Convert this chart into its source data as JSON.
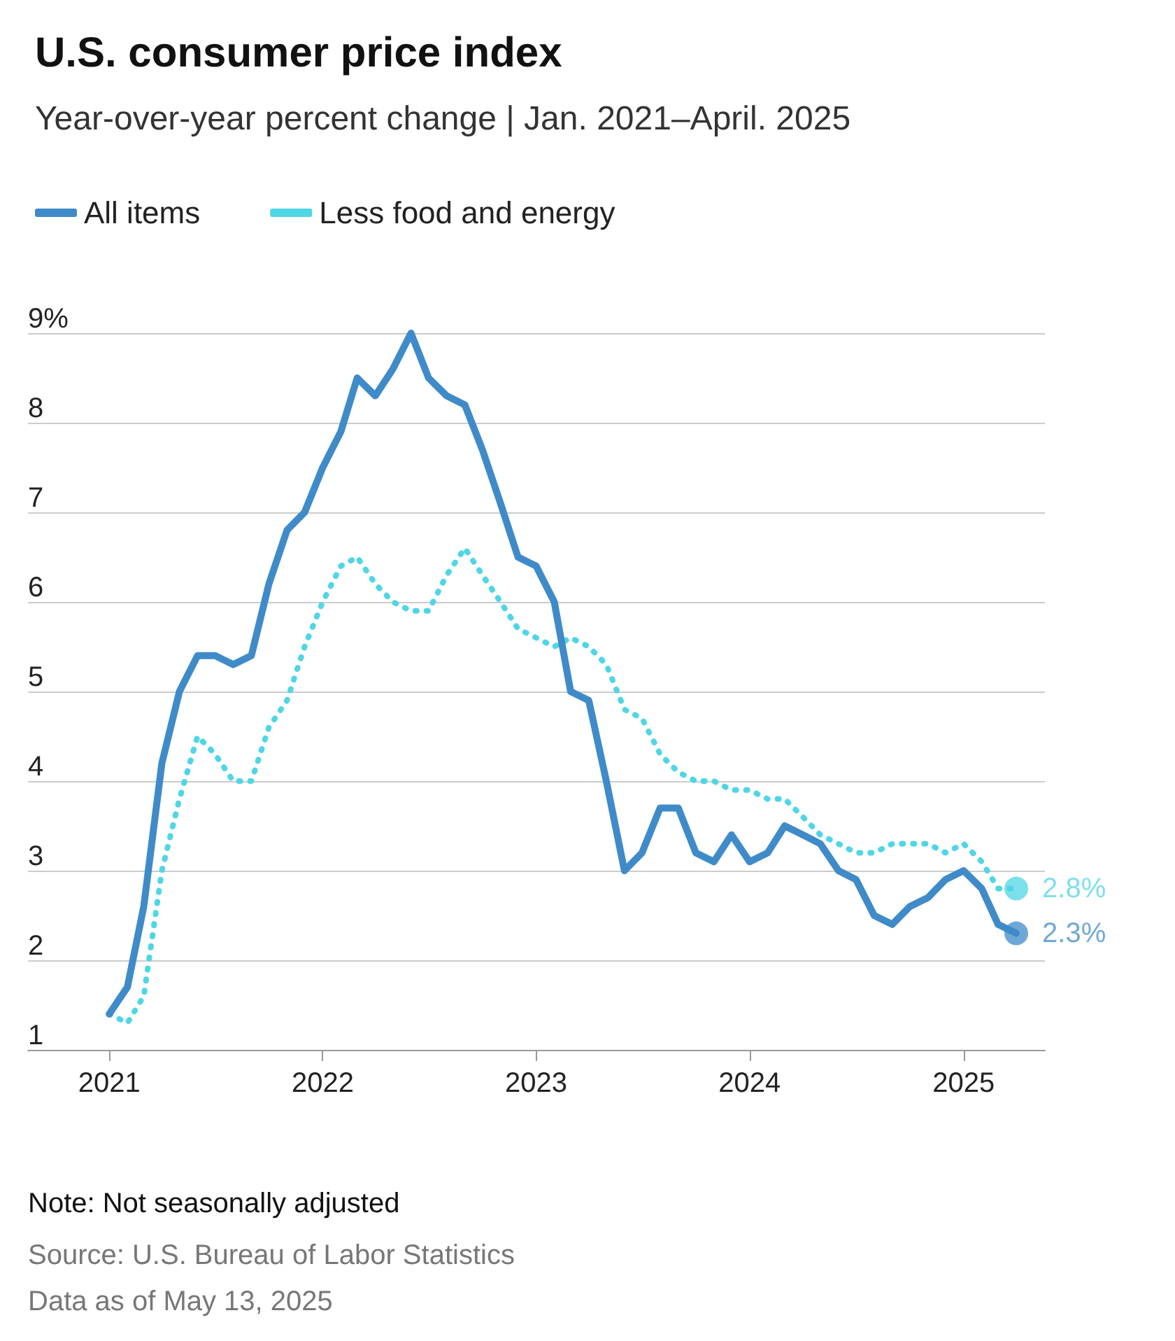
{
  "chart_data": {
    "type": "line",
    "title": "U.S. consumer price index",
    "subtitle": "Year-over-year percent change | Jan. 2021–April. 2025",
    "x": [
      "2021-01",
      "2021-02",
      "2021-03",
      "2021-04",
      "2021-05",
      "2021-06",
      "2021-07",
      "2021-08",
      "2021-09",
      "2021-10",
      "2021-11",
      "2021-12",
      "2022-01",
      "2022-02",
      "2022-03",
      "2022-04",
      "2022-05",
      "2022-06",
      "2022-07",
      "2022-08",
      "2022-09",
      "2022-10",
      "2022-11",
      "2022-12",
      "2023-01",
      "2023-02",
      "2023-03",
      "2023-04",
      "2023-05",
      "2023-06",
      "2023-07",
      "2023-08",
      "2023-09",
      "2023-10",
      "2023-11",
      "2023-12",
      "2024-01",
      "2024-02",
      "2024-03",
      "2024-04",
      "2024-05",
      "2024-06",
      "2024-07",
      "2024-08",
      "2024-09",
      "2024-10",
      "2024-11",
      "2024-12",
      "2025-01",
      "2025-02",
      "2025-03",
      "2025-04"
    ],
    "series": [
      {
        "name": "All items",
        "color": "#3f8bc9",
        "line_style": "solid",
        "values": [
          1.4,
          1.7,
          2.6,
          4.2,
          5.0,
          5.4,
          5.4,
          5.3,
          5.4,
          6.2,
          6.8,
          7.0,
          7.5,
          7.9,
          8.5,
          8.3,
          8.6,
          9.0,
          8.5,
          8.3,
          8.2,
          7.7,
          7.1,
          6.5,
          6.4,
          6.0,
          5.0,
          4.9,
          4.0,
          3.0,
          3.2,
          3.7,
          3.7,
          3.2,
          3.1,
          3.4,
          3.1,
          3.2,
          3.5,
          3.4,
          3.3,
          3.0,
          2.9,
          2.5,
          2.4,
          2.6,
          2.7,
          2.9,
          3.0,
          2.8,
          2.4,
          2.3
        ],
        "value_labels": [
          null,
          null,
          null,
          null,
          null,
          null,
          null,
          null,
          null,
          null,
          null,
          null,
          null,
          null,
          null,
          null,
          null,
          null,
          null,
          null,
          null,
          null,
          null,
          null,
          null,
          null,
          null,
          null,
          null,
          null,
          null,
          null,
          null,
          null,
          null,
          null,
          null,
          null,
          null,
          null,
          null,
          null,
          null,
          null,
          null,
          null,
          null,
          null,
          null,
          null,
          null,
          "2.3%"
        ]
      },
      {
        "name": "Less food and energy",
        "color": "#4fd6e6",
        "line_style": "dotted",
        "values": [
          1.4,
          1.3,
          1.6,
          3.0,
          3.8,
          4.5,
          4.3,
          4.0,
          4.0,
          4.6,
          4.9,
          5.5,
          6.0,
          6.4,
          6.5,
          6.2,
          6.0,
          5.9,
          5.9,
          6.3,
          6.6,
          6.3,
          6.0,
          5.7,
          5.6,
          5.5,
          5.6,
          5.5,
          5.3,
          4.8,
          4.7,
          4.3,
          4.1,
          4.0,
          4.0,
          3.9,
          3.9,
          3.8,
          3.8,
          3.6,
          3.4,
          3.3,
          3.2,
          3.2,
          3.3,
          3.3,
          3.3,
          3.2,
          3.3,
          3.1,
          2.8,
          2.8
        ],
        "value_labels": [
          null,
          null,
          null,
          null,
          null,
          null,
          null,
          null,
          null,
          null,
          null,
          null,
          null,
          null,
          null,
          null,
          null,
          null,
          null,
          null,
          null,
          null,
          null,
          null,
          null,
          null,
          null,
          null,
          null,
          null,
          null,
          null,
          null,
          null,
          null,
          null,
          null,
          null,
          null,
          null,
          null,
          null,
          null,
          null,
          null,
          null,
          null,
          null,
          null,
          null,
          null,
          "2.8%"
        ]
      }
    ],
    "xlim": [
      "2020-08-15",
      "2025-05-20"
    ],
    "xticks": [
      "2021",
      "2022",
      "2023",
      "2024",
      "2025"
    ],
    "ylim": [
      1,
      9
    ],
    "yticks": [
      1,
      2,
      3,
      4,
      5,
      6,
      7,
      8,
      {
        "value": 9,
        "label": "9%"
      }
    ],
    "grid": "y",
    "legend": "top left",
    "marker": "none",
    "annotations": [
      "Note: Not seasonally adjusted",
      "Source: U.S. Bureau of Labor Statistics",
      "Data as of May 13, 2025"
    ]
  }
}
